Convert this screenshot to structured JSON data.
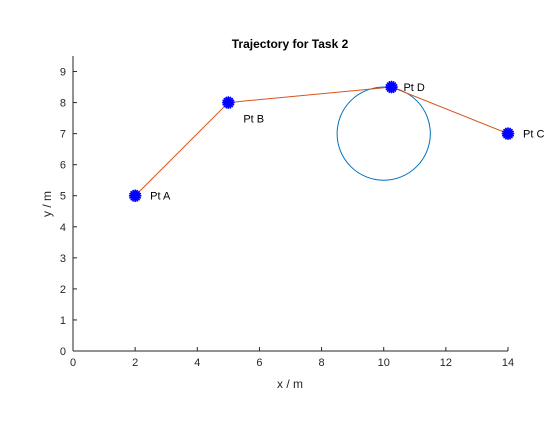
{
  "chart_data": {
    "type": "scatter",
    "title": "Trajectory for Task 2",
    "xlabel": "x / m",
    "ylabel": "y / m",
    "xlim": [
      0,
      14
    ],
    "ylim": [
      0,
      9.5
    ],
    "xticks": [
      "0",
      "2",
      "4",
      "6",
      "8",
      "10",
      "12",
      "14"
    ],
    "yticks": [
      "0",
      "1",
      "2",
      "3",
      "4",
      "5",
      "6",
      "7",
      "8",
      "9"
    ],
    "grid": false,
    "points": [
      {
        "label": "Pt A",
        "x": 2,
        "y": 5
      },
      {
        "label": "Pt B",
        "x": 5,
        "y": 8
      },
      {
        "label": "Pt D",
        "x": 10.25,
        "y": 8.5
      },
      {
        "label": "Pt C",
        "x": 14,
        "y": 7
      }
    ],
    "path_order": [
      "Pt A",
      "Pt B",
      "Pt D",
      "Pt C"
    ],
    "circle": {
      "center_x": 10,
      "center_y": 7,
      "radius": 1.5
    },
    "colors": {
      "path": "#D95319",
      "circle": "#0072BD",
      "marker": "#0000FF",
      "axis": "#262626"
    }
  }
}
